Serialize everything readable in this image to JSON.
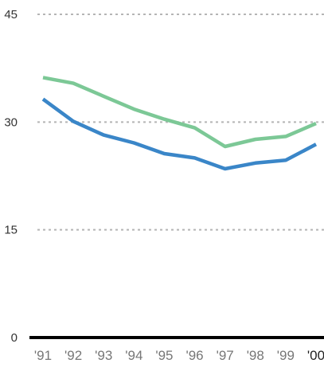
{
  "chart_data": {
    "type": "line",
    "title": "",
    "xlabel": "",
    "ylabel": "",
    "categories": [
      "'91",
      "'92",
      "'93",
      "'94",
      "'95",
      "'96",
      "'97",
      "'98",
      "'99",
      "'00"
    ],
    "y_ticks": [
      "0",
      "15",
      "30",
      "45"
    ],
    "y_tick_values": [
      0,
      15,
      30,
      45
    ],
    "ylim": [
      0,
      45
    ],
    "grid": true,
    "series": [
      {
        "color": "#7cc896",
        "values": [
          36.2,
          35.4,
          33.6,
          31.8,
          30.4,
          29.2,
          26.6,
          27.6,
          28.0,
          29.8
        ]
      },
      {
        "color": "#3a86c8",
        "values": [
          33.2,
          30.1,
          28.2,
          27.1,
          25.6,
          25.0,
          23.5,
          24.3,
          24.7,
          26.9
        ]
      }
    ]
  }
}
